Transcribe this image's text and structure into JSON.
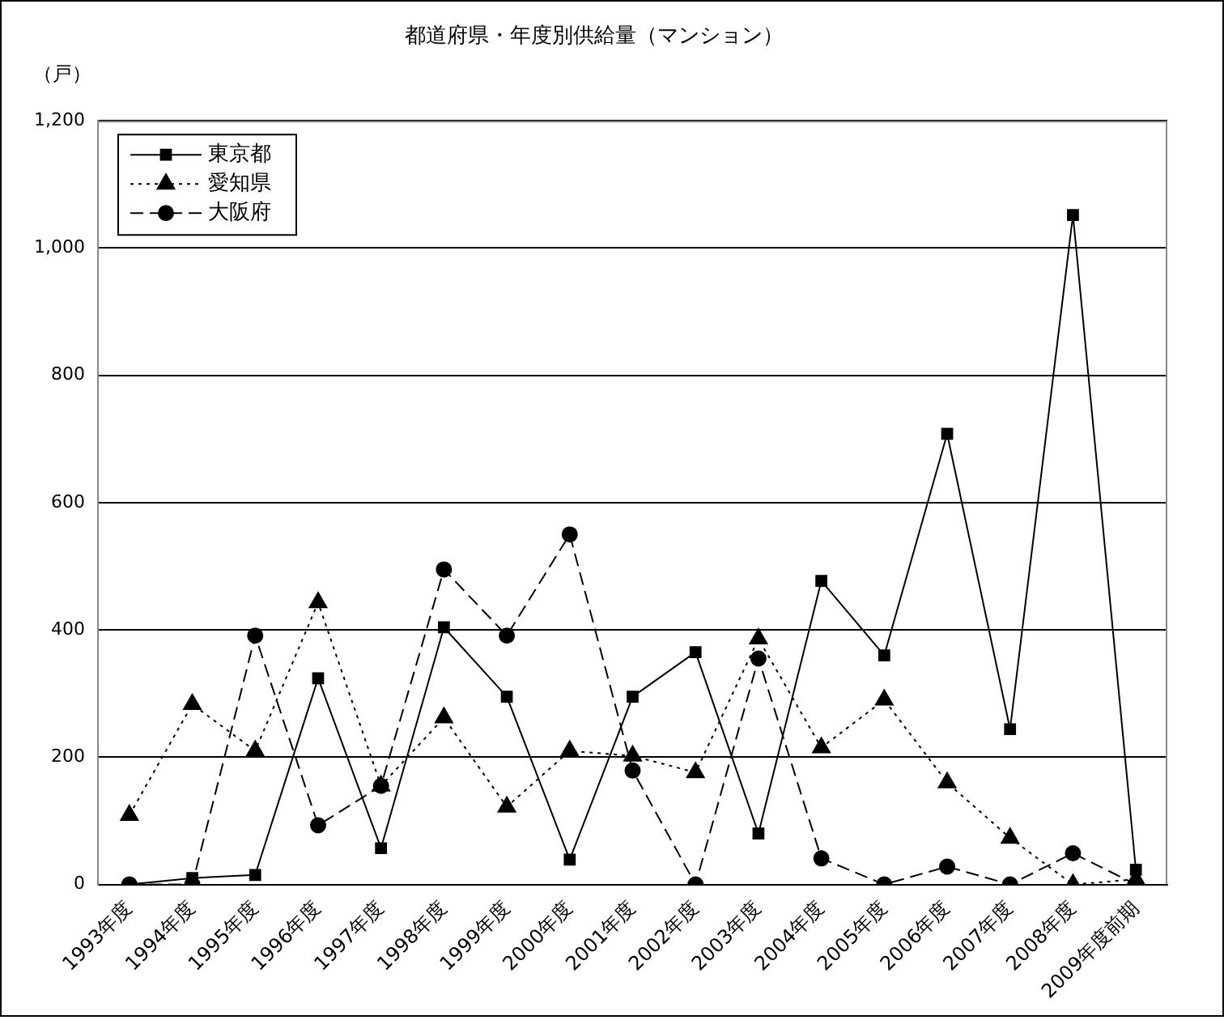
{
  "chart_data": {
    "type": "line",
    "title": "都道府県・年度別供給量（マンション）",
    "ylabel": "（戸）",
    "categories": [
      "1993年度",
      "1994年度",
      "1995年度",
      "1996年度",
      "1997年度",
      "1998年度",
      "1999年度",
      "2000年度",
      "2001年度",
      "2002年度",
      "2003年度",
      "2004年度",
      "2005年度",
      "2006年度",
      "2007年度",
      "2008年度",
      "2009年度前期"
    ],
    "series": [
      {
        "name": "東京都",
        "color": "#000000",
        "marker": "square",
        "line_style": "solid",
        "values": [
          0,
          10,
          15,
          324,
          57,
          404,
          295,
          39,
          295,
          365,
          80,
          477,
          360,
          708,
          244,
          1052,
          23
        ]
      },
      {
        "name": "愛知県",
        "color": "#000000",
        "marker": "triangle",
        "line_style": "dotted",
        "values": [
          109,
          283,
          210,
          443,
          155,
          262,
          122,
          210,
          202,
          176,
          386,
          215,
          290,
          160,
          73,
          0,
          8
        ]
      },
      {
        "name": "大阪府",
        "color": "#000000",
        "marker": "circle",
        "line_style": "dashed",
        "values": [
          0,
          0,
          391,
          93,
          155,
          495,
          391,
          550,
          179,
          0,
          355,
          41,
          0,
          28,
          0,
          49,
          0
        ]
      }
    ],
    "ylim": [
      0,
      1200
    ],
    "yticks": [
      0,
      200,
      400,
      600,
      800,
      {
        "value": 1000,
        "label": "1,000"
      },
      {
        "value": 1200,
        "label": "1,200"
      }
    ],
    "grid": "y",
    "legend": "top left"
  }
}
